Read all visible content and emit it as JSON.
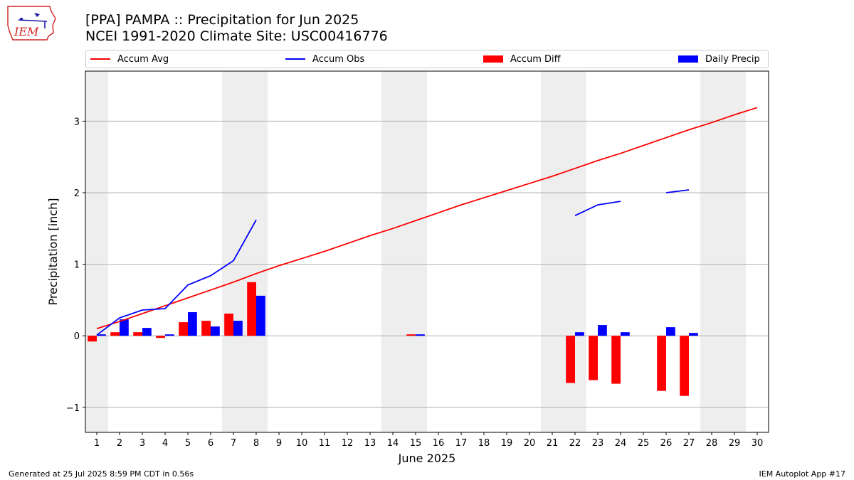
{
  "header": {
    "title_line1": "[PPA] PAMPA :: Precipitation for Jun 2025",
    "title_line2": "NCEI 1991-2020 Climate Site: USC00416776"
  },
  "logo": {
    "text": "IEM",
    "color": "#d22222"
  },
  "footer": {
    "left": "Generated at 25 Jul 2025 8:59 PM CDT in 0.56s",
    "right": "IEM Autoplot App #17"
  },
  "chart_data": {
    "type": "bar",
    "xlabel": "June 2025",
    "ylabel": "Precipitation [inch]",
    "ylim": [
      -1.35,
      3.7
    ],
    "xlim": [
      0.5,
      30.5
    ],
    "yticks": [
      -1,
      0,
      1,
      2,
      3
    ],
    "ytick_labels": [
      "−1",
      "0",
      "1",
      "2",
      "3"
    ],
    "days": [
      1,
      2,
      3,
      4,
      5,
      6,
      7,
      8,
      9,
      10,
      11,
      12,
      13,
      14,
      15,
      16,
      17,
      18,
      19,
      20,
      21,
      22,
      23,
      24,
      25,
      26,
      27,
      28,
      29,
      30
    ],
    "weekend_bands": [
      [
        0.5,
        1.5
      ],
      [
        6.5,
        8.5
      ],
      [
        13.5,
        15.5
      ],
      [
        20.5,
        22.5
      ],
      [
        27.5,
        29.5
      ]
    ],
    "grid": "horizontal",
    "legend": [
      {
        "label": "Accum Avg",
        "kind": "line",
        "color": "#ff0000"
      },
      {
        "label": "Accum Obs",
        "kind": "line",
        "color": "#0000ff"
      },
      {
        "label": "Accum Diff",
        "kind": "bar",
        "color": "#ff0000"
      },
      {
        "label": "Daily Precip",
        "kind": "bar",
        "color": "#0000ff"
      }
    ],
    "series": [
      {
        "name": "Accum Avg",
        "type": "line",
        "color": "#ff0000",
        "x": [
          1,
          2,
          3,
          4,
          5,
          6,
          7,
          8,
          9,
          10,
          11,
          12,
          13,
          14,
          15,
          16,
          17,
          18,
          19,
          20,
          21,
          22,
          23,
          24,
          25,
          26,
          27,
          28,
          29,
          30
        ],
        "values": [
          0.1,
          0.2,
          0.31,
          0.42,
          0.53,
          0.64,
          0.75,
          0.87,
          0.98,
          1.08,
          1.18,
          1.29,
          1.4,
          1.5,
          1.61,
          1.72,
          1.83,
          1.93,
          2.03,
          2.13,
          2.23,
          2.34,
          2.45,
          2.55,
          2.66,
          2.77,
          2.88,
          2.98,
          3.09,
          3.19
        ]
      },
      {
        "name": "Accum Obs",
        "type": "line",
        "color": "#0000ff",
        "x": [
          1,
          2,
          3,
          4,
          5,
          6,
          7,
          8,
          9,
          10,
          11,
          12,
          13,
          14,
          15,
          16,
          17,
          18,
          19,
          20,
          21,
          22,
          23,
          24,
          25,
          26,
          27,
          28,
          29,
          30
        ],
        "values": [
          0.01,
          0.25,
          0.36,
          0.38,
          0.71,
          0.84,
          1.05,
          1.62,
          null,
          null,
          null,
          null,
          null,
          null,
          null,
          null,
          null,
          null,
          null,
          null,
          null,
          1.68,
          1.83,
          1.88,
          null,
          2.0,
          2.04,
          null,
          null,
          null
        ]
      },
      {
        "name": "Accum Diff",
        "type": "bar",
        "color": "#ff0000",
        "x": [
          1,
          2,
          3,
          4,
          5,
          6,
          7,
          8,
          15,
          22,
          23,
          24,
          26,
          27
        ],
        "values": [
          -0.08,
          0.05,
          0.05,
          -0.03,
          0.19,
          0.21,
          0.31,
          0.75,
          0.02,
          -0.66,
          -0.62,
          -0.67,
          -0.77,
          -0.84
        ]
      },
      {
        "name": "Daily Precip",
        "type": "bar",
        "color": "#0000ff",
        "x": [
          1,
          2,
          3,
          4,
          5,
          6,
          7,
          8,
          15,
          22,
          23,
          24,
          26,
          27
        ],
        "values": [
          0.02,
          0.23,
          0.11,
          0.02,
          0.33,
          0.13,
          0.21,
          0.56,
          0.02,
          0.05,
          0.15,
          0.05,
          0.12,
          0.04
        ]
      }
    ]
  }
}
